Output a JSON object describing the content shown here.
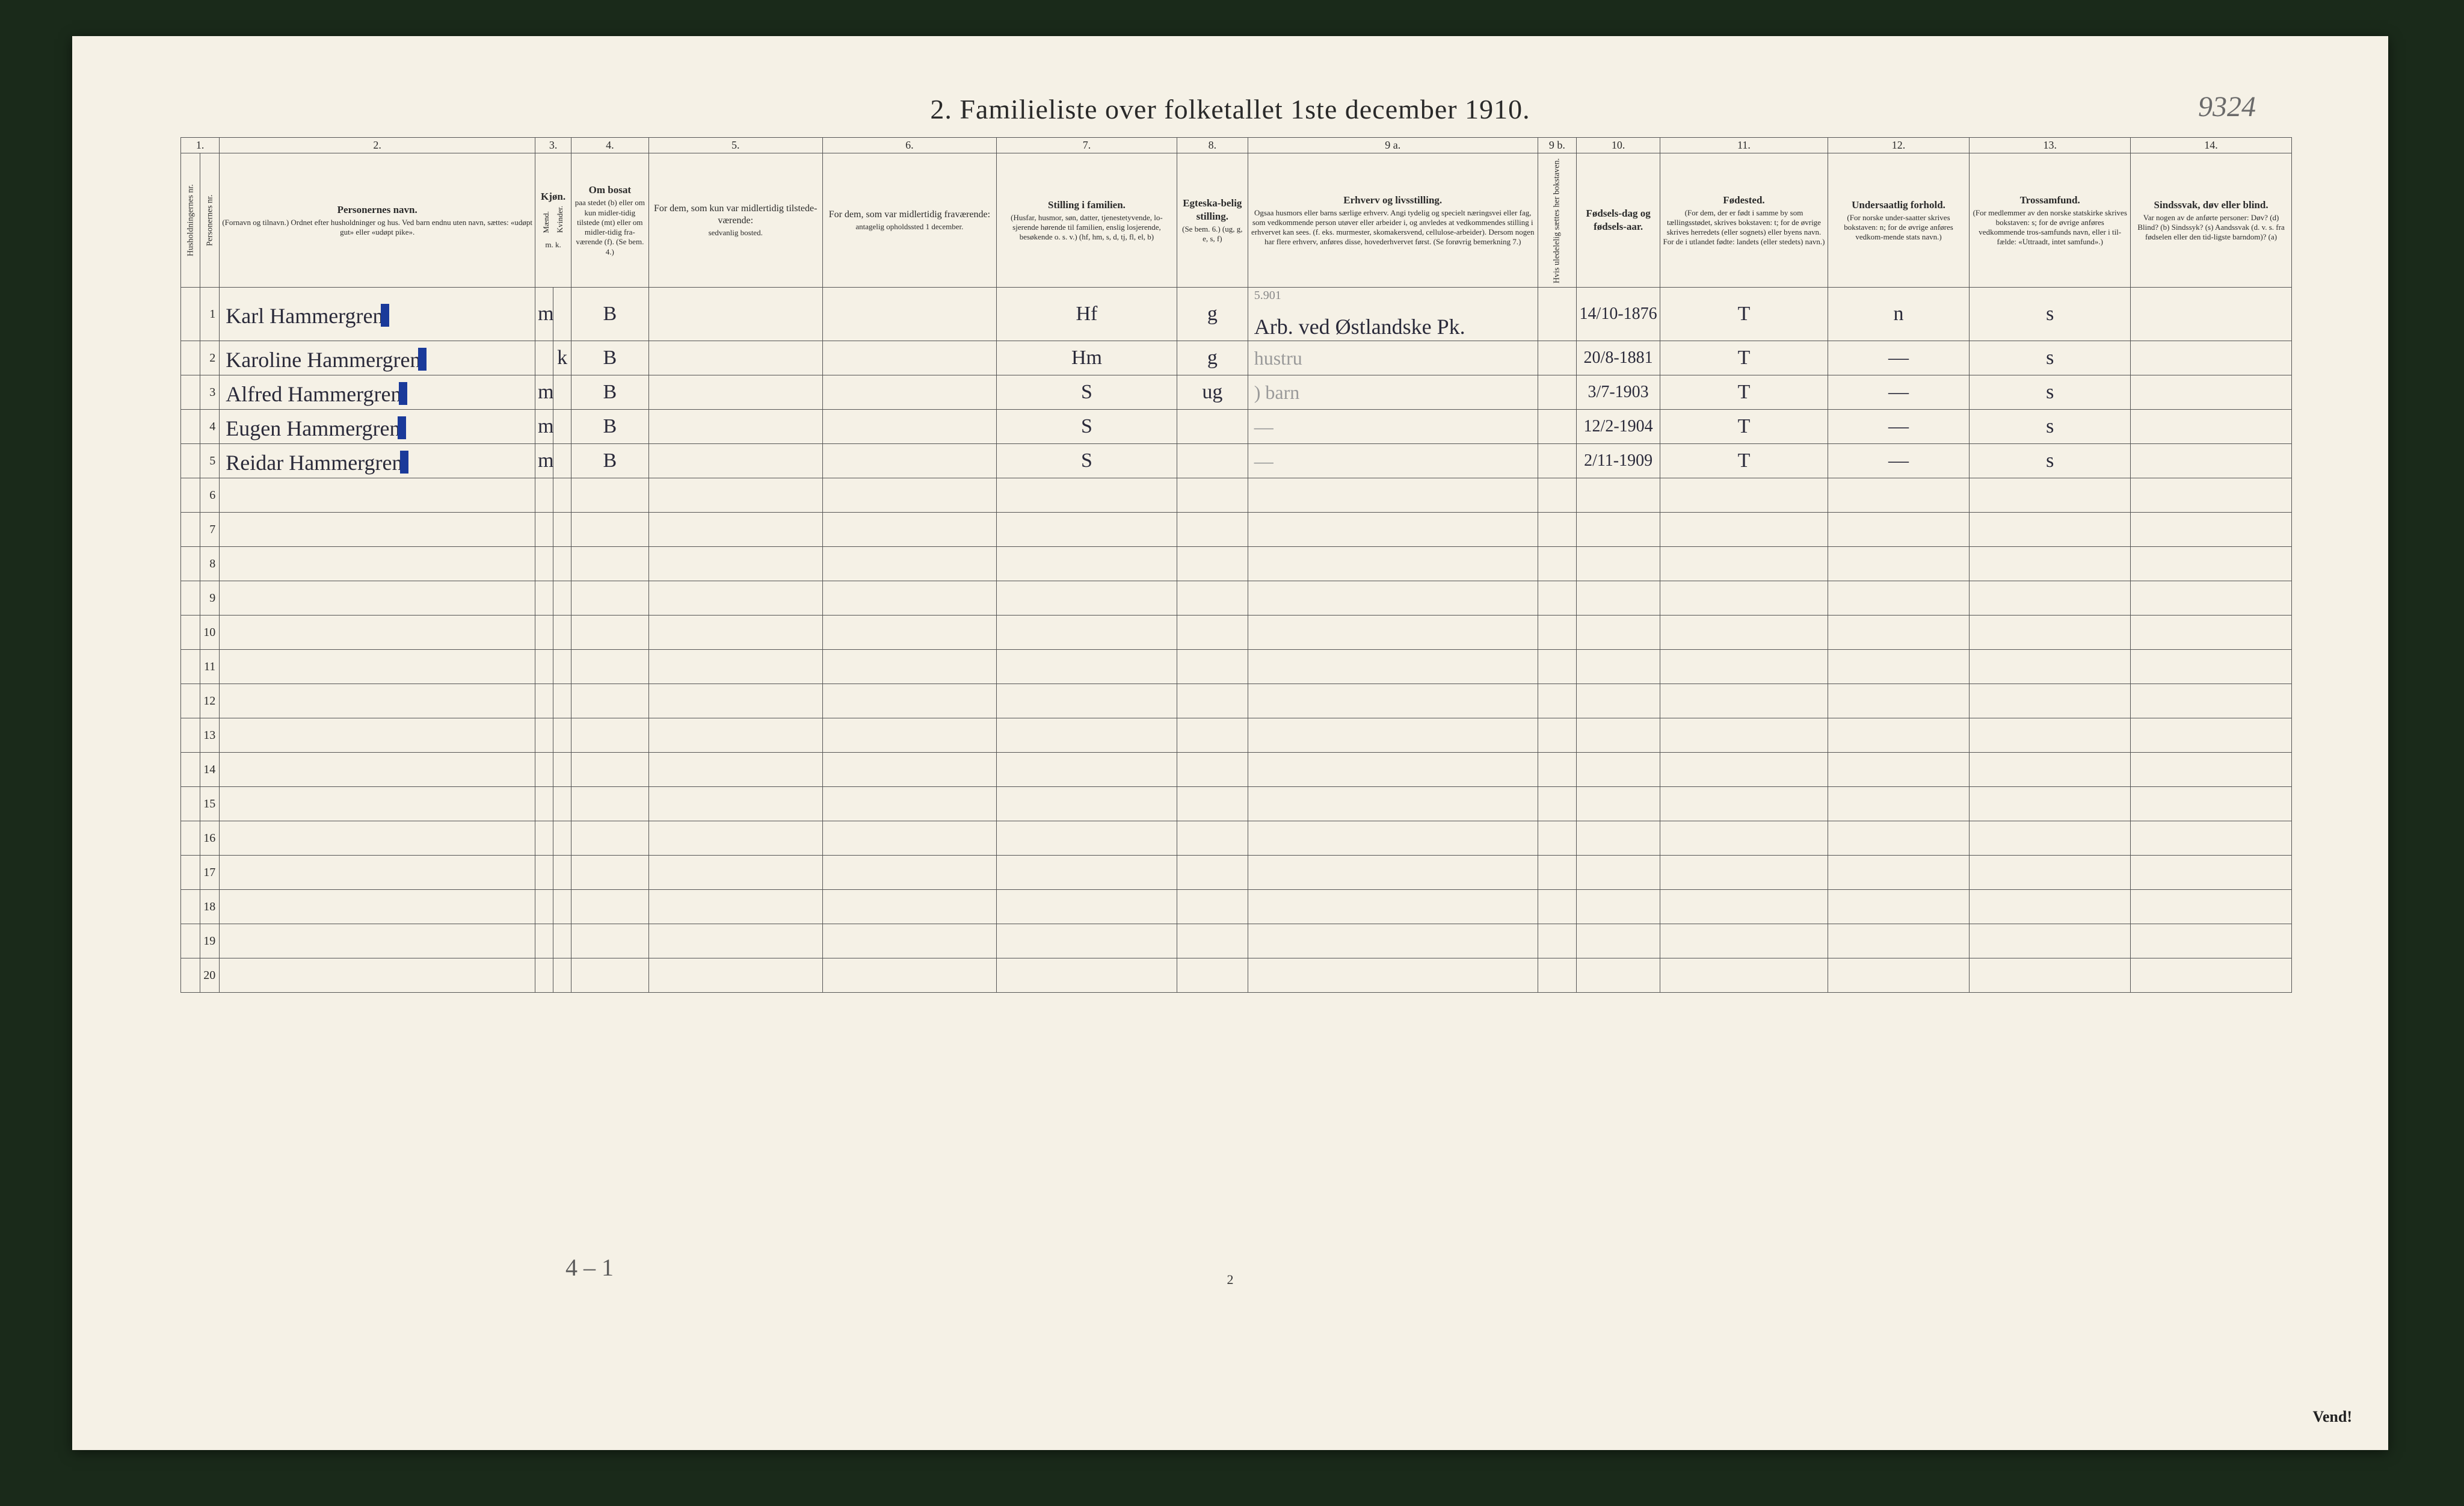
{
  "document": {
    "title": "2.  Familieliste over folketallet 1ste december 1910.",
    "topright_annotation": "9324",
    "page_number": "2",
    "vend": "Vend!",
    "footer_annotation": "4 – 1"
  },
  "colors": {
    "page_bg": "#f5f1e6",
    "border": "#555555",
    "ink": "#2a2a2a",
    "hand_ink": "#2a2a3a",
    "faint_ink": "#9a9a9a",
    "blue_mark": "#1a3a9a",
    "outer_bg": "#1a2a1a"
  },
  "columns": {
    "nums": [
      "1.",
      "",
      "2.",
      "3.",
      "",
      "4.",
      "5.",
      "6.",
      "7.",
      "8.",
      "9 a.",
      "9 b.",
      "10.",
      "11.",
      "12.",
      "13.",
      "14."
    ],
    "headers": {
      "c1": "Husholdningernes nr.",
      "c1b": "Personernes nr.",
      "c2": {
        "title": "Personernes navn.",
        "sub": "(Fornavn og tilnavn.)\nOrdnet efter husholdninger og hus.\nVed barn endnu uten navn, sættes: «udøpt gut» eller «udøpt pike»."
      },
      "c3": {
        "title": "Kjøn.",
        "sub_m": "Mænd.",
        "sub_k": "Kvinder.",
        "mk": "m.  k."
      },
      "c4": {
        "title": "Om bosat",
        "sub": "paa stedet (b) eller om kun midler-tidig tilstede (mt) eller om midler-tidig fra-værende (f). (Se bem. 4.)"
      },
      "c5": {
        "title": "For dem, som kun var midlertidig tilstede-værende:",
        "sub": "sedvanlig bosted."
      },
      "c6": {
        "title": "For dem, som var midlertidig fraværende:",
        "sub": "antagelig opholdssted 1 december."
      },
      "c7": {
        "title": "Stilling i familien.",
        "sub": "(Husfar, husmor, søn, datter, tjenestetyvende, lo-sjerende hørende til familien, enslig losjerende, besøkende o. s. v.)\n(hf, hm, s, d, tj, fl, el, b)"
      },
      "c8": {
        "title": "Egteska-belig stilling.",
        "sub": "(Se bem. 6.)\n(ug, g, e, s, f)"
      },
      "c9a": {
        "title": "Erhverv og livsstilling.",
        "sub": "Ogsaa husmors eller barns særlige erhverv. Angi tydelig og specielt næringsvei eller fag, som vedkommende person utøver eller arbeider i, og anvledes at vedkommendes stilling i erhvervet kan sees. (f. eks. murmester, skomakersvend, cellulose-arbeider). Dersom nogen har flere erhverv, anføres disse, hovederhvervet først. (Se forøvrig bemerkning 7.)"
      },
      "c9b": "Hvis uledelelig sættes her bokstaven.",
      "c10": {
        "title": "Fødsels-dag og fødsels-aar."
      },
      "c11": {
        "title": "Fødested.",
        "sub": "(For dem, der er født i samme by som tællingsstødet, skrives bokstaven: t; for de øvrige skrives herredets (eller sognets) eller byens navn. For de i utlandet fødte: landets (eller stedets) navn.)"
      },
      "c12": {
        "title": "Undersaatlig forhold.",
        "sub": "(For norske under-saatter skrives bokstaven: n; for de øvrige anføres vedkom-mende stats navn.)"
      },
      "c13": {
        "title": "Trossamfund.",
        "sub": "(For medlemmer av den norske statskirke skrives bokstaven: s; for de øvrige anføres vedkommende tros-samfunds navn, eller i til-fælde: «Uttraadt, intet samfund».)"
      },
      "c14": {
        "title": "Sindssvak, døv eller blind.",
        "sub": "Var nogen av de anførte personer:\nDøv?        (d)\nBlind?      (b)\nSindssyk?  (s)\nAandssvak (d. v. s. fra fødselen eller den tid-ligste barndom)? (a)"
      }
    }
  },
  "rows": [
    {
      "num": "1",
      "name": "Karl Hammergren",
      "sex_m": "m",
      "sex_k": "",
      "bosat": "B",
      "stilling": "Hf",
      "egte": "g",
      "erhverv": "Arb. ved Østlandske Pk.",
      "erhverv_over": "5.901",
      "fdato": "14/10-1876",
      "fsted": "T",
      "under": "n",
      "tros": "s",
      "blue": true
    },
    {
      "num": "2",
      "name": "Karoline Hammergren",
      "sex_m": "",
      "sex_k": "k",
      "bosat": "B",
      "stilling": "Hm",
      "egte": "g",
      "erhverv": "hustru",
      "erhverv_faint": true,
      "fdato": "20/8-1881",
      "fsted": "T",
      "under": "—",
      "tros": "s",
      "blue": true
    },
    {
      "num": "3",
      "name": "Alfred Hammergren",
      "sex_m": "m",
      "sex_k": "",
      "bosat": "B",
      "stilling": "S",
      "egte": "ug",
      "erhverv": ") barn",
      "erhverv_faint": true,
      "fdato": "3/7-1903",
      "fsted": "T",
      "under": "—",
      "tros": "s",
      "blue": true
    },
    {
      "num": "4",
      "name": "Eugen Hammergren",
      "sex_m": "m",
      "sex_k": "",
      "bosat": "B",
      "stilling": "S",
      "egte": "",
      "erhverv": " —",
      "erhverv_faint": true,
      "fdato": "12/2-1904",
      "fsted": "T",
      "under": "—",
      "tros": "s",
      "blue": true
    },
    {
      "num": "5",
      "name": "Reidar Hammergren",
      "sex_m": "m",
      "sex_k": "",
      "bosat": "B",
      "stilling": "S",
      "egte": "",
      "erhverv": "—",
      "erhverv_faint": true,
      "fdato": "2/11-1909",
      "fsted": "T",
      "under": "—",
      "tros": "s",
      "blue": true
    }
  ],
  "empty_row_nums": [
    "6",
    "7",
    "8",
    "9",
    "10",
    "11",
    "12",
    "13",
    "14",
    "15",
    "16",
    "17",
    "18",
    "19",
    "20"
  ]
}
